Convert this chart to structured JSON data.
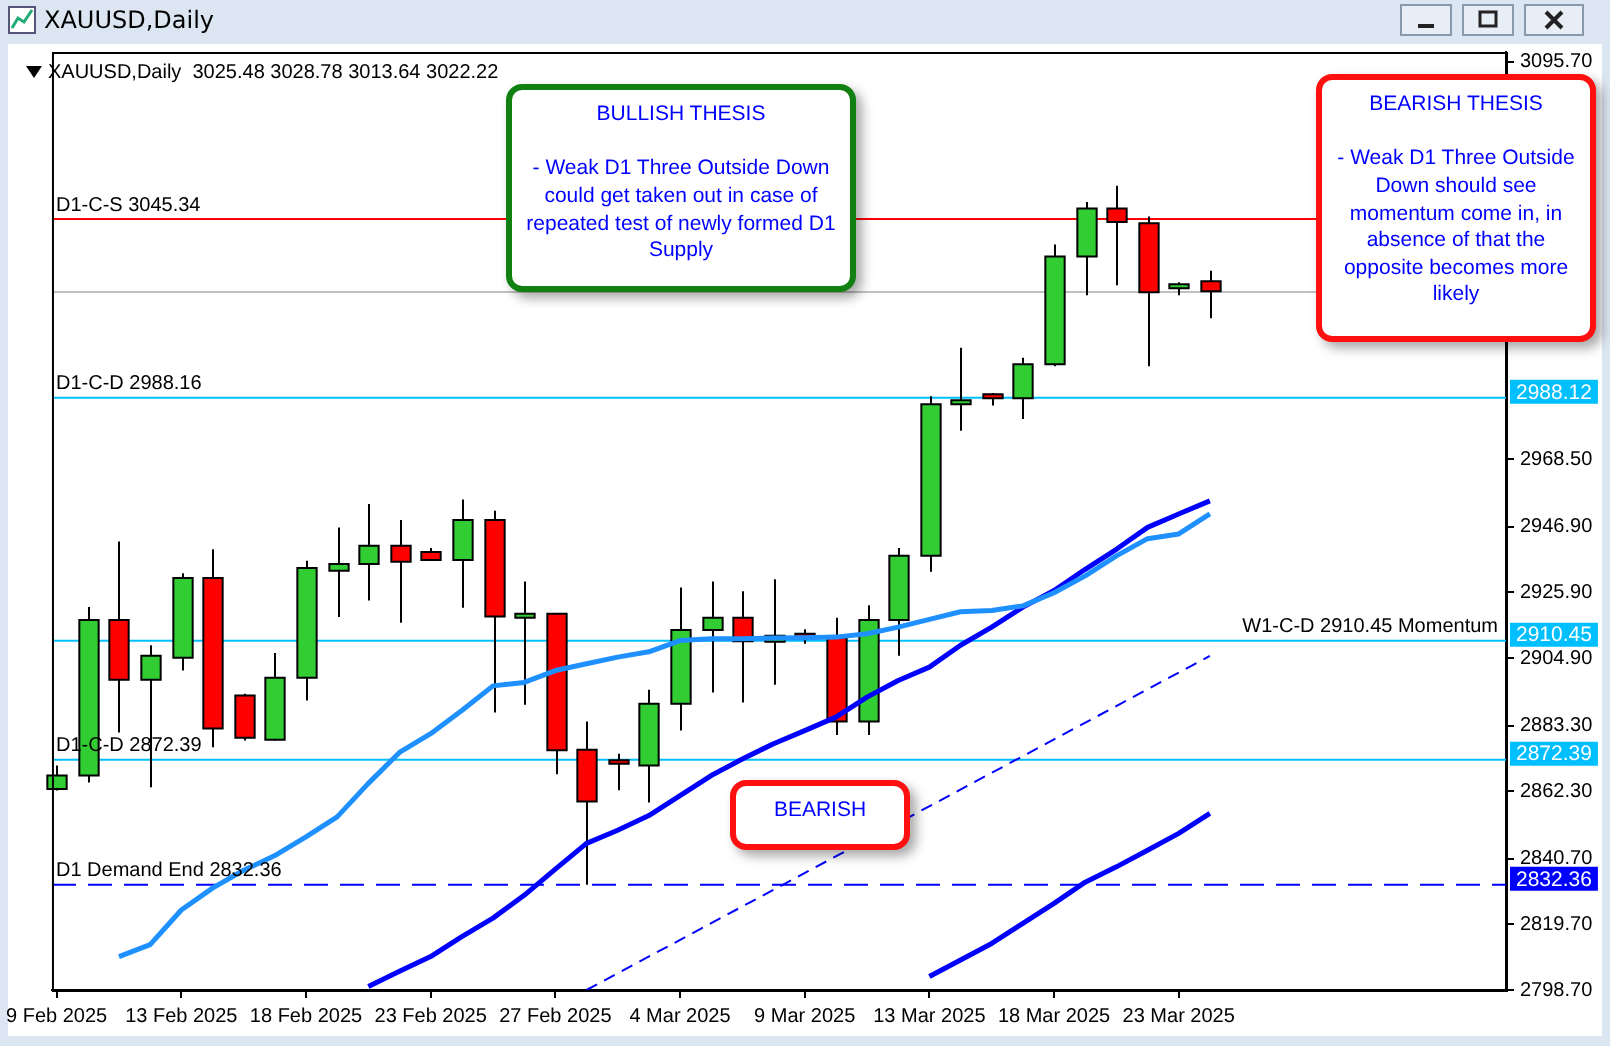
{
  "chart_data": {
    "type": "candlestick",
    "title": "XAUUSD,Daily",
    "subtitle": "3025.48 3028.78 3013.64 3022.22",
    "categories": [
      "9 Feb 2025",
      null,
      null,
      null,
      "13 Feb 2025",
      null,
      null,
      null,
      "18 Feb 2025",
      null,
      null,
      null,
      "23 Feb 2025",
      null,
      null,
      null,
      "27 Feb 2025",
      null,
      null,
      null,
      "4 Mar 2025",
      null,
      null,
      null,
      "9 Mar 2025",
      null,
      null,
      null,
      "13 Mar 2025",
      null,
      null,
      null,
      "18 Mar 2025",
      null,
      null,
      null,
      "23 Mar 2025",
      null
    ],
    "ohlc": [
      [
        2863.0,
        2870.5,
        2862.5,
        2867.3
      ],
      [
        2867.3,
        2921.2,
        2865.1,
        2917.1
      ],
      [
        2917.1,
        2942.2,
        2881.1,
        2898.0
      ],
      [
        2898.0,
        2909.0,
        2863.6,
        2905.6
      ],
      [
        2905.0,
        2932.0,
        2900.9,
        2930.5
      ],
      [
        2930.5,
        2939.7,
        2876.4,
        2882.4
      ],
      [
        2892.9,
        2893.5,
        2878.5,
        2879.4
      ],
      [
        2878.8,
        2906.5,
        2878.5,
        2898.6
      ],
      [
        2898.6,
        2936.0,
        2891.3,
        2933.7
      ],
      [
        2932.8,
        2946.7,
        2918.0,
        2935.0
      ],
      [
        2935.0,
        2954.2,
        2923.3,
        2940.8
      ],
      [
        2940.8,
        2949.1,
        2916.2,
        2935.7
      ],
      [
        2938.8,
        2940.1,
        2936.3,
        2936.3
      ],
      [
        2936.3,
        2955.6,
        2921.0,
        2949.1
      ],
      [
        2949.1,
        2952.0,
        2887.5,
        2918.2
      ],
      [
        2917.8,
        2929.4,
        2890.0,
        2919.1
      ],
      [
        2919.1,
        2919.1,
        2867.7,
        2875.4
      ],
      [
        2875.6,
        2884.6,
        2832.4,
        2859.0
      ],
      [
        2872.2,
        2874.3,
        2862.6,
        2871.1
      ],
      [
        2870.5,
        2894.8,
        2858.7,
        2890.3
      ],
      [
        2890.3,
        2927.5,
        2881.7,
        2913.9
      ],
      [
        2913.9,
        2929.4,
        2893.9,
        2917.8
      ],
      [
        2917.8,
        2926.3,
        2890.7,
        2910.3
      ],
      [
        2910.1,
        2930.1,
        2896.4,
        2912.0
      ],
      [
        2912.7,
        2914.1,
        2909.5,
        2911.4
      ],
      [
        2911.4,
        2917.8,
        2880.3,
        2884.6
      ],
      [
        2884.6,
        2921.8,
        2880.3,
        2917.1
      ],
      [
        2917.1,
        2940.1,
        2905.6,
        2937.6
      ],
      [
        2937.6,
        2988.7,
        2932.5,
        2986.1
      ],
      [
        2986.1,
        3004.2,
        2977.6,
        2987.4
      ],
      [
        2989.3,
        2989.7,
        2985.7,
        2988.0
      ],
      [
        2988.0,
        3001.0,
        2981.4,
        2998.9
      ],
      [
        2998.9,
        3037.2,
        2998.3,
        3033.4
      ],
      [
        3033.4,
        3050.8,
        3021.0,
        3048.7
      ],
      [
        3048.7,
        3056.0,
        3024.2,
        3044.4
      ],
      [
        3044.0,
        3046.2,
        2998.3,
        3021.9
      ],
      [
        3023.2,
        3025.1,
        3021.0,
        3024.5
      ],
      [
        3025.48,
        3028.78,
        3013.64,
        3022.22
      ]
    ],
    "colors": [
      "#32cd32",
      "#32cd32",
      "#ff0000",
      "#32cd32",
      "#32cd32",
      "#ff0000",
      "#ff0000",
      "#32cd32",
      "#32cd32",
      "#32cd32",
      "#32cd32",
      "#ff0000",
      "#ff0000",
      "#32cd32",
      "#ff0000",
      "#32cd32",
      "#ff0000",
      "#ff0000",
      "#ff0000",
      "#32cd32",
      "#32cd32",
      "#32cd32",
      "#ff0000",
      "#32cd32",
      "#ff0000",
      "#ff0000",
      "#32cd32",
      "#32cd32",
      "#32cd32",
      "#32cd32",
      "#ff0000",
      "#32cd32",
      "#32cd32",
      "#32cd32",
      "#ff0000",
      "#ff0000",
      "#32cd32",
      "#ff0000"
    ],
    "series": [
      {
        "type": "line",
        "color": "#1e90ff",
        "values": [
          null,
          null,
          2809.4,
          2813.2,
          2824.3,
          2831.3,
          2837.0,
          2841.7,
          2847.7,
          2854.1,
          2864.8,
          2874.7,
          2880.7,
          2888.1,
          2896.0,
          2897.1,
          2900.9,
          2903.1,
          2905.2,
          2906.9,
          2910.5,
          2911.1,
          2911.1,
          2911.3,
          2911.4,
          2911.6,
          2912.7,
          2914.8,
          2917.3,
          2919.7,
          2920.1,
          2921.6,
          2925.8,
          2931.2,
          2937.6,
          2943.1,
          2944.6,
          2951.0
        ]
      },
      {
        "type": "line",
        "color": "#0000ff",
        "values": [
          null,
          null,
          null,
          null,
          null,
          null,
          null,
          null,
          null,
          null,
          2799.8,
          2804.7,
          2809.4,
          2815.8,
          2821.7,
          2829.0,
          2837.4,
          2845.6,
          2849.8,
          2854.5,
          2860.9,
          2867.3,
          2872.6,
          2877.5,
          2881.7,
          2886.0,
          2892.4,
          2897.7,
          2902.0,
          2909.0,
          2914.8,
          2921.2,
          2926.5,
          2933.3,
          2939.7,
          2946.7,
          2951.0,
          2955.2
        ]
      },
      {
        "type": "line",
        "color": "#0000ff",
        "values": [
          null,
          null,
          null,
          null,
          null,
          null,
          null,
          null,
          null,
          null,
          null,
          null,
          null,
          null,
          null,
          null,
          null,
          null,
          null,
          null,
          null,
          null,
          null,
          null,
          null,
          null,
          null,
          null,
          2803.0,
          2808.3,
          2813.6,
          2820.0,
          2826.4,
          2833.2,
          2838.1,
          2843.4,
          2848.8,
          2855.2
        ]
      },
      {
        "type": "line",
        "color": "#0000ff",
        "line_style": "dashed",
        "values": [
          null,
          null,
          null,
          null,
          null,
          null,
          null,
          null,
          null,
          null,
          null,
          null,
          null,
          null,
          null,
          null,
          null,
          2798.7,
          null,
          null,
          null,
          null,
          null,
          null,
          null,
          null,
          null,
          null,
          null,
          null,
          null,
          null,
          null,
          null,
          null,
          null,
          null,
          2905.6
        ]
      }
    ],
    "ylim": [
      2798.7,
      3098.8
    ],
    "yticks": [
      {
        "value": 3095.7,
        "label": "3095.70"
      },
      {
        "value": 2968.5,
        "label": "2968.50"
      },
      {
        "value": 2946.9,
        "label": "2946.90"
      },
      {
        "value": 2925.9,
        "label": "2925.90"
      },
      {
        "value": 2904.9,
        "label": "2904.90"
      },
      {
        "value": 2883.3,
        "label": "2883.30"
      },
      {
        "value": 2862.3,
        "label": "2862.30"
      },
      {
        "value": 2840.7,
        "label": "2840.70"
      },
      {
        "value": 2819.7,
        "label": "2819.70"
      },
      {
        "value": 2798.7,
        "label": "2798.70"
      }
    ],
    "ref_lines": [
      {
        "axis": "y",
        "value": 3045.34,
        "label": "D1-C-S 3045.34",
        "color": "#ff0000"
      },
      {
        "axis": "y",
        "value": 3022,
        "color": "#c0c0c0"
      },
      {
        "axis": "y",
        "value": 2988.16,
        "label": "D1-C-D 2988.16",
        "color": "#00bfff"
      },
      {
        "axis": "y",
        "value": 2910.45,
        "label": "W1-C-D 2910.45 Momentum",
        "color": "#00bfff"
      },
      {
        "axis": "y",
        "value": 2872.39,
        "label": "D1-C-D 2872.39",
        "color": "#00bfff"
      },
      {
        "axis": "y",
        "value": 2832.36,
        "label": "D1 Demand End 2832.36",
        "color": "#0000ff",
        "line_style": "dashed"
      }
    ],
    "annotations": [
      "BULLISH THESIS\n\n- Weak D1 Three Outside Down could get taken out in case of repeated test of newly formed D1 Supply",
      "BEARISH THESIS\n\n- Weak D1 Three Outside Down should see momentum come in, in absence of that the opposite becomes more likely",
      "BEARISH",
      "2988.12",
      "2910.45",
      "2872.39",
      "2832.36"
    ],
    "grid": false,
    "legend": false,
    "marker": "none"
  }
}
